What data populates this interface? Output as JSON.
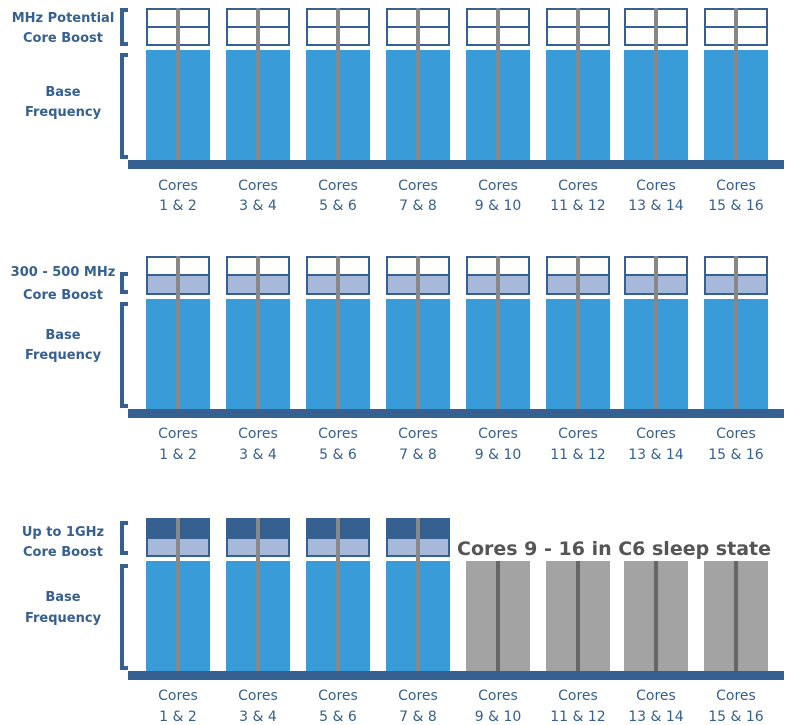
{
  "colors": {
    "base_blue": "#3a9bd9",
    "dark_blue": "#35608f",
    "light_blue_fill": "#a6b9db",
    "divider_gray": "#888888",
    "sleep_gray": "#a3a3a3",
    "label_blue": "#35608f",
    "white": "#ffffff"
  },
  "core_groups": [
    [
      "Cores",
      "1 & 2"
    ],
    [
      "Cores",
      "3 & 4"
    ],
    [
      "Cores",
      "5 & 6"
    ],
    [
      "Cores",
      "7 & 8"
    ],
    [
      "Cores",
      "9 & 10"
    ],
    [
      "Cores",
      "11 & 12"
    ],
    [
      "Cores",
      "13 & 14"
    ],
    [
      "Cores",
      "15 & 16"
    ]
  ],
  "panels": [
    {
      "boost_label": [
        "MHz Potential",
        "Core Boost"
      ],
      "base_label": [
        "Base",
        "Frequency"
      ],
      "boost_levels": [
        0,
        0,
        0,
        0,
        0,
        0,
        0,
        0
      ],
      "sleeping": [
        false,
        false,
        false,
        false,
        false,
        false,
        false,
        false
      ],
      "note": ""
    },
    {
      "boost_label": [
        "300 - 500 MHz",
        "Core Boost"
      ],
      "base_label": [
        "Base",
        "Frequency"
      ],
      "boost_levels": [
        1,
        1,
        1,
        1,
        1,
        1,
        1,
        1
      ],
      "sleeping": [
        false,
        false,
        false,
        false,
        false,
        false,
        false,
        false
      ],
      "note": ""
    },
    {
      "boost_label": [
        "Up to 1GHz",
        "Core Boost"
      ],
      "base_label": [
        "Base",
        "Frequency"
      ],
      "boost_levels": [
        2,
        2,
        2,
        2,
        0,
        0,
        0,
        0
      ],
      "sleeping": [
        false,
        false,
        false,
        false,
        true,
        true,
        true,
        true
      ],
      "note": "Cores 9 - 16 in C6 sleep state"
    }
  ]
}
